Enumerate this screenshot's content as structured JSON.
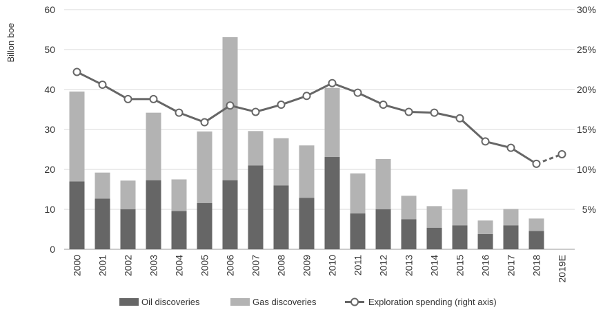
{
  "chart_data": {
    "type": "bar",
    "stacked": true,
    "categories": [
      "2000",
      "2001",
      "2002",
      "2003",
      "2004",
      "2005",
      "2006",
      "2007",
      "2008",
      "2009",
      "2010",
      "2011",
      "2012",
      "2013",
      "2014",
      "2015",
      "2016",
      "2017",
      "2018",
      "2019E"
    ],
    "series": [
      {
        "name": "Oil discoveries",
        "type": "bar",
        "axis": "left",
        "color": "#666666",
        "values": [
          17,
          12.7,
          10,
          17.3,
          9.6,
          11.6,
          17.3,
          21,
          16,
          12.9,
          23.1,
          9,
          10,
          7.5,
          5.4,
          6,
          3.8,
          6,
          4.6,
          null
        ]
      },
      {
        "name": "Gas discoveries",
        "type": "bar",
        "axis": "left",
        "color": "#b3b3b3",
        "values": [
          22.5,
          6.5,
          7.2,
          16.9,
          7.9,
          17.9,
          35.8,
          8.6,
          11.8,
          13.1,
          17.3,
          10,
          12.6,
          5.9,
          5.4,
          9,
          3.4,
          4.1,
          3.1,
          null
        ]
      },
      {
        "name": "Exploration spending (right axis)",
        "type": "line",
        "axis": "right",
        "color": "#666666",
        "values": [
          22.2,
          20.6,
          18.8,
          18.8,
          17.1,
          15.9,
          18,
          17.2,
          18.1,
          19.2,
          20.8,
          19.6,
          18.1,
          17.2,
          17.1,
          16.4,
          13.5,
          12.7,
          10.7,
          11.9
        ],
        "estimate_from": "2018"
      }
    ],
    "ylabel": "Billon boe",
    "y_ticks": [
      "0",
      "10",
      "20",
      "30",
      "40",
      "50",
      "60"
    ],
    "y2_ticks": [
      "5%",
      "10%",
      "15%",
      "20%",
      "25%",
      "30%"
    ],
    "ylim": [
      0,
      60
    ],
    "y2lim": [
      0,
      30
    ],
    "grid": true,
    "legend_position": "bottom"
  }
}
